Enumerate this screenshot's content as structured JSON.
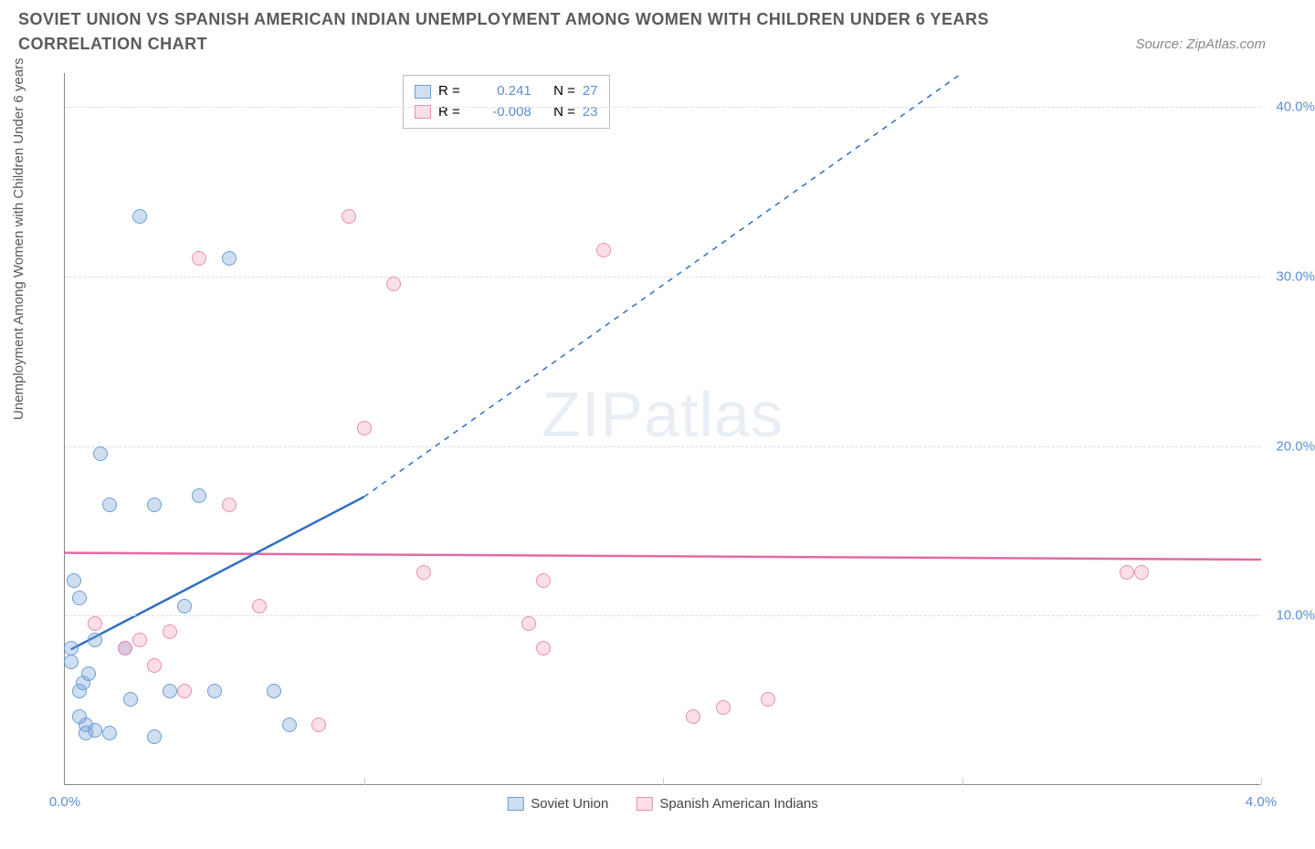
{
  "title": "SOVIET UNION VS SPANISH AMERICAN INDIAN UNEMPLOYMENT AMONG WOMEN WITH CHILDREN UNDER 6 YEARS CORRELATION CHART",
  "source": "Source: ZipAtlas.com",
  "ylabel": "Unemployment Among Women with Children Under 6 years",
  "watermark_a": "ZIP",
  "watermark_b": "atlas",
  "chart": {
    "type": "scatter",
    "xlim": [
      0.0,
      4.0
    ],
    "ylim": [
      0.0,
      42.0
    ],
    "xtick_step": 1.0,
    "yticks": [
      10.0,
      20.0,
      30.0,
      40.0
    ],
    "ytick_labels": [
      "10.0%",
      "20.0%",
      "30.0%",
      "40.0%"
    ],
    "xticks": [
      0.0,
      1.0,
      2.0,
      3.0,
      4.0
    ],
    "xtick_labels": [
      "0.0%",
      "",
      "",
      "",
      "4.0%"
    ],
    "background_color": "#ffffff",
    "grid_color": "#dddddd",
    "axis_color": "#888888",
    "label_color": "#5b8fd6",
    "series": [
      {
        "name": "Soviet Union",
        "color_fill": "rgba(120,160,215,0.35)",
        "color_stroke": "#6a9fd4",
        "R": "0.241",
        "N": "27",
        "points": [
          [
            0.02,
            8.0
          ],
          [
            0.02,
            7.2
          ],
          [
            0.03,
            12.0
          ],
          [
            0.05,
            11.0
          ],
          [
            0.05,
            5.5
          ],
          [
            0.06,
            6.0
          ],
          [
            0.07,
            3.0
          ],
          [
            0.07,
            3.5
          ],
          [
            0.1,
            8.5
          ],
          [
            0.12,
            19.5
          ],
          [
            0.15,
            3.0
          ],
          [
            0.15,
            16.5
          ],
          [
            0.2,
            8.0
          ],
          [
            0.22,
            5.0
          ],
          [
            0.25,
            33.5
          ],
          [
            0.3,
            16.5
          ],
          [
            0.35,
            5.5
          ],
          [
            0.4,
            10.5
          ],
          [
            0.45,
            17.0
          ],
          [
            0.5,
            5.5
          ],
          [
            0.55,
            31.0
          ],
          [
            0.7,
            5.5
          ],
          [
            0.75,
            3.5
          ],
          [
            0.08,
            6.5
          ],
          [
            0.05,
            4.0
          ],
          [
            0.1,
            3.2
          ],
          [
            0.3,
            2.8
          ]
        ],
        "trend": {
          "x1": 0.02,
          "y1": 8.0,
          "x2": 1.0,
          "y2": 17.0,
          "dash_to_x": 3.0,
          "dash_to_y": 42.0,
          "color": "#2f6fc4"
        }
      },
      {
        "name": "Spanish American Indians",
        "color_fill": "rgba(240,150,180,0.3)",
        "color_stroke": "#e78fb0",
        "R": "-0.008",
        "N": "23",
        "points": [
          [
            0.1,
            9.5
          ],
          [
            0.2,
            8.0
          ],
          [
            0.25,
            8.5
          ],
          [
            0.35,
            9.0
          ],
          [
            0.4,
            5.5
          ],
          [
            0.45,
            31.0
          ],
          [
            0.55,
            16.5
          ],
          [
            0.65,
            10.5
          ],
          [
            0.85,
            3.5
          ],
          [
            0.95,
            33.5
          ],
          [
            1.0,
            21.0
          ],
          [
            1.1,
            29.5
          ],
          [
            1.2,
            12.5
          ],
          [
            1.55,
            9.5
          ],
          [
            1.6,
            12.0
          ],
          [
            1.6,
            8.0
          ],
          [
            1.8,
            31.5
          ],
          [
            2.1,
            4.0
          ],
          [
            2.2,
            4.5
          ],
          [
            2.35,
            5.0
          ],
          [
            3.55,
            12.5
          ],
          [
            3.6,
            12.5
          ],
          [
            0.3,
            7.0
          ]
        ],
        "trend": {
          "x1": 0.0,
          "y1": 13.7,
          "x2": 4.0,
          "y2": 13.3,
          "color": "#e36aa0"
        }
      }
    ]
  },
  "legend_top": {
    "r_label": "R =",
    "n_label": "N ="
  },
  "legend_bottom": [
    "Soviet Union",
    "Spanish American Indians"
  ]
}
